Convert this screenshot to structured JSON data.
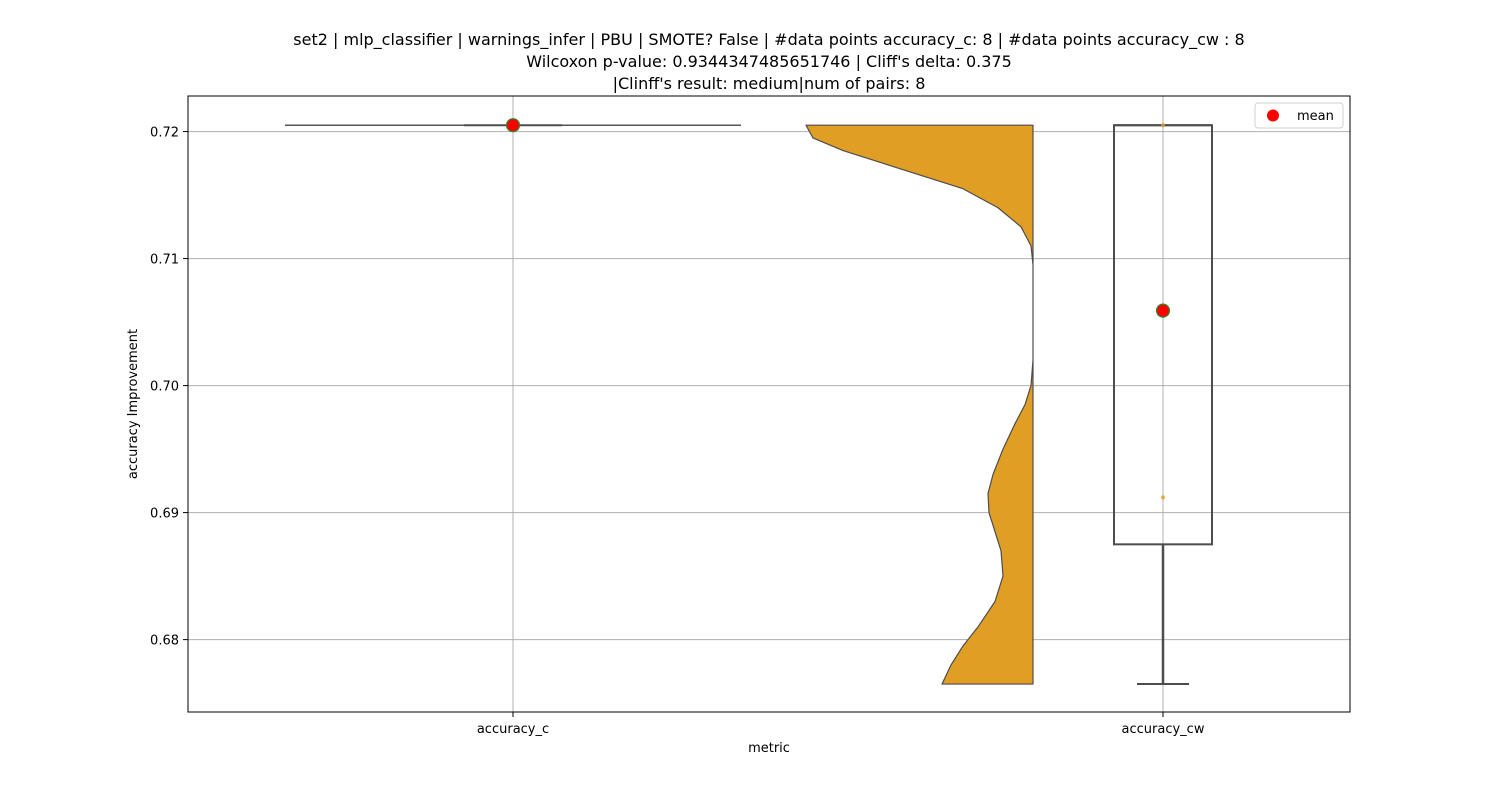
{
  "title": {
    "line1": "set2 | mlp_classifier | warnings_infer | PBU | SMOTE? False | #data points accuracy_c: 8 | #data points accuracy_cw : 8",
    "line2": "Wilcoxon p-value: 0.9344347485651746 | Cliff's delta: 0.375",
    "line3": "|Clinff's result: medium|num of pairs: 8"
  },
  "chart_data": {
    "type": "violin",
    "xlabel": "metric",
    "ylabel": "accuracy Improvement",
    "categories": [
      "accuracy_c",
      "accuracy_cw"
    ],
    "ylim": [
      0.6743,
      0.7228
    ],
    "yticks": [
      0.68,
      0.69,
      0.7,
      0.71,
      0.72
    ],
    "ytick_labels": [
      "0.68",
      "0.69",
      "0.70",
      "0.71",
      "0.72"
    ],
    "grid": true,
    "legend": {
      "position": "top-right",
      "entries": [
        "mean"
      ]
    },
    "colors": {
      "violin_fill": "#e09e24",
      "mean_marker": "#ff0000",
      "mean_edge": "#2e8b2e",
      "outlier": "#e09e24",
      "box_edge": "#4d4d4d"
    },
    "series": [
      {
        "category": "accuracy_c",
        "violin": {
          "min": 0.7205,
          "max": 0.7205
        },
        "box": {
          "q1": 0.7205,
          "median": 0.7205,
          "q3": 0.7205,
          "whisker_low": 0.7205,
          "whisker_high": 0.7205
        },
        "mean": 0.7205
      },
      {
        "category": "accuracy_cw",
        "violin": {
          "min": 0.6765,
          "max": 0.7205
        },
        "box": {
          "q1": 0.6875,
          "median": 0.7205,
          "q3": 0.7205,
          "whisker_low": 0.6765,
          "whisker_high": 0.7205
        },
        "outliers": [
          0.6912,
          0.7205
        ],
        "mean": 0.7059
      }
    ]
  }
}
